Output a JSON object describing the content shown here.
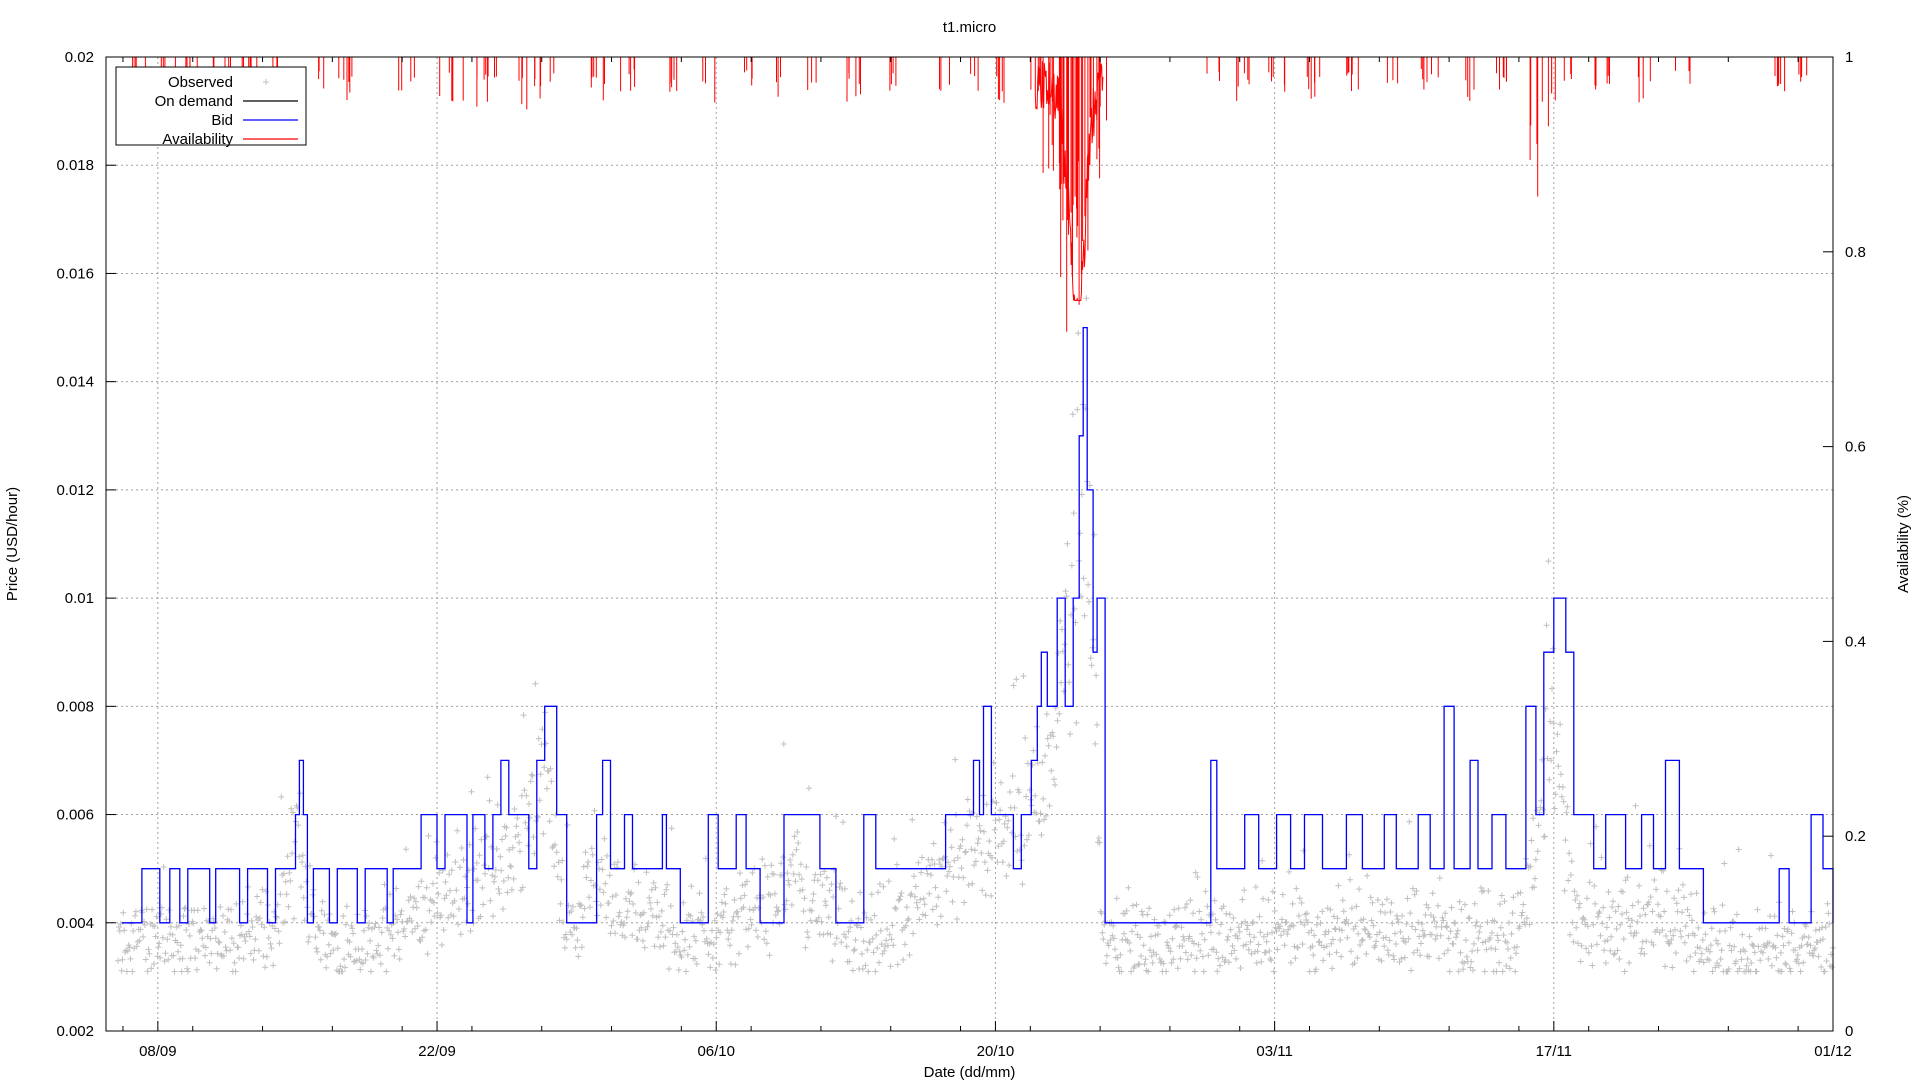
{
  "chart_data": {
    "type": "line",
    "title": "t1.micro",
    "xlabel": "Date (dd/mm)",
    "ylabel": "Price (USD/hour)",
    "y2label": "Availability (%)",
    "x_tick_labels": [
      "08/09",
      "22/09",
      "06/10",
      "20/10",
      "03/11",
      "17/11",
      "01/12"
    ],
    "x_tick_days": [
      0,
      14,
      28,
      42,
      56,
      70,
      84
    ],
    "xlim_days": [
      -2.6,
      84.0
    ],
    "ylim": [
      0.002,
      0.02
    ],
    "y_ticks": [
      0.002,
      0.004,
      0.006,
      0.008,
      0.01,
      0.012,
      0.014,
      0.016,
      0.018,
      0.02
    ],
    "y_tick_labels": [
      "0.002",
      "0.004",
      "0.006",
      "0.008",
      "0.01",
      "0.012",
      "0.014",
      "0.016",
      "0.018",
      "0.02"
    ],
    "y2lim": [
      0,
      1
    ],
    "y2_ticks": [
      0,
      0.2,
      0.4,
      0.6,
      0.8,
      1
    ],
    "y2_tick_labels": [
      "0",
      "0.2",
      "0.4",
      "0.6",
      "0.8",
      "1"
    ],
    "grid": true,
    "legend_position": "top-left",
    "legend": [
      "Observed",
      "On demand",
      "Bid",
      "Availability"
    ],
    "series_colors": {
      "Observed": "#c0c0c0",
      "On demand": "#000000",
      "Bid": "#0000ff",
      "Availability": "#ff0000"
    },
    "series": [
      {
        "name": "Bid",
        "type": "step",
        "points": [
          [
            -1.8,
            0.004
          ],
          [
            -0.8,
            0.005
          ],
          [
            0.1,
            0.004
          ],
          [
            0.6,
            0.005
          ],
          [
            1.1,
            0.004
          ],
          [
            1.5,
            0.005
          ],
          [
            2.6,
            0.004
          ],
          [
            2.9,
            0.005
          ],
          [
            4.1,
            0.004
          ],
          [
            4.5,
            0.005
          ],
          [
            5.5,
            0.004
          ],
          [
            5.9,
            0.005
          ],
          [
            6.9,
            0.006
          ],
          [
            7.1,
            0.007
          ],
          [
            7.3,
            0.006
          ],
          [
            7.5,
            0.004
          ],
          [
            7.8,
            0.005
          ],
          [
            8.6,
            0.004
          ],
          [
            9.0,
            0.005
          ],
          [
            10.0,
            0.004
          ],
          [
            10.4,
            0.005
          ],
          [
            11.5,
            0.004
          ],
          [
            11.8,
            0.005
          ],
          [
            13.2,
            0.006
          ],
          [
            14.0,
            0.005
          ],
          [
            14.4,
            0.006
          ],
          [
            15.5,
            0.004
          ],
          [
            15.8,
            0.006
          ],
          [
            16.4,
            0.005
          ],
          [
            16.8,
            0.006
          ],
          [
            17.2,
            0.007
          ],
          [
            17.6,
            0.006
          ],
          [
            18.6,
            0.005
          ],
          [
            19.0,
            0.007
          ],
          [
            19.4,
            0.008
          ],
          [
            20.0,
            0.006
          ],
          [
            20.5,
            0.004
          ],
          [
            22.0,
            0.006
          ],
          [
            22.3,
            0.007
          ],
          [
            22.7,
            0.005
          ],
          [
            23.4,
            0.006
          ],
          [
            23.8,
            0.005
          ],
          [
            25.3,
            0.006
          ],
          [
            25.5,
            0.005
          ],
          [
            26.2,
            0.004
          ],
          [
            27.6,
            0.006
          ],
          [
            28.1,
            0.005
          ],
          [
            29.0,
            0.006
          ],
          [
            29.5,
            0.005
          ],
          [
            30.2,
            0.004
          ],
          [
            31.4,
            0.006
          ],
          [
            33.2,
            0.005
          ],
          [
            34.0,
            0.004
          ],
          [
            35.4,
            0.006
          ],
          [
            36.0,
            0.005
          ],
          [
            39.5,
            0.006
          ],
          [
            40.6,
            0.006
          ],
          [
            40.9,
            0.007
          ],
          [
            41.2,
            0.006
          ],
          [
            41.4,
            0.008
          ],
          [
            41.8,
            0.006
          ],
          [
            42.9,
            0.005
          ],
          [
            43.3,
            0.006
          ],
          [
            43.8,
            0.007
          ],
          [
            44.1,
            0.008
          ],
          [
            44.3,
            0.009
          ],
          [
            44.6,
            0.008
          ],
          [
            45.1,
            0.01
          ],
          [
            45.5,
            0.008
          ],
          [
            45.9,
            0.01
          ],
          [
            46.2,
            0.013
          ],
          [
            46.4,
            0.015
          ],
          [
            46.6,
            0.012
          ],
          [
            46.9,
            0.009
          ],
          [
            47.1,
            0.01
          ],
          [
            47.5,
            0.004
          ],
          [
            52.8,
            0.007
          ],
          [
            53.1,
            0.005
          ],
          [
            54.5,
            0.006
          ],
          [
            55.2,
            0.005
          ],
          [
            56.1,
            0.006
          ],
          [
            56.8,
            0.005
          ],
          [
            57.5,
            0.006
          ],
          [
            58.4,
            0.005
          ],
          [
            59.6,
            0.006
          ],
          [
            60.4,
            0.005
          ],
          [
            61.5,
            0.006
          ],
          [
            62.1,
            0.005
          ],
          [
            63.2,
            0.006
          ],
          [
            63.8,
            0.005
          ],
          [
            64.5,
            0.008
          ],
          [
            65.0,
            0.005
          ],
          [
            65.8,
            0.007
          ],
          [
            66.2,
            0.005
          ],
          [
            66.9,
            0.006
          ],
          [
            67.6,
            0.005
          ],
          [
            68.6,
            0.008
          ],
          [
            69.1,
            0.006
          ],
          [
            69.5,
            0.009
          ],
          [
            70.0,
            0.01
          ],
          [
            70.6,
            0.009
          ],
          [
            71.0,
            0.006
          ],
          [
            72.0,
            0.005
          ],
          [
            72.6,
            0.006
          ],
          [
            73.6,
            0.005
          ],
          [
            74.4,
            0.006
          ],
          [
            75.0,
            0.005
          ],
          [
            75.6,
            0.007
          ],
          [
            76.3,
            0.005
          ],
          [
            77.5,
            0.004
          ],
          [
            81.3,
            0.005
          ],
          [
            81.8,
            0.004
          ],
          [
            82.9,
            0.006
          ],
          [
            83.5,
            0.005
          ],
          [
            84.0,
            0.004
          ]
        ]
      },
      {
        "name": "Observed",
        "type": "scatter",
        "baseline": [
          [
            -2.0,
            0.0035
          ],
          [
            0.0,
            0.0037
          ],
          [
            2.0,
            0.0036
          ],
          [
            4.0,
            0.0037
          ],
          [
            6.0,
            0.0038
          ],
          [
            7.0,
            0.0055
          ],
          [
            8.0,
            0.0037
          ],
          [
            10.0,
            0.0036
          ],
          [
            12.0,
            0.0038
          ],
          [
            14.0,
            0.0044
          ],
          [
            16.0,
            0.0047
          ],
          [
            18.0,
            0.0052
          ],
          [
            19.5,
            0.0066
          ],
          [
            20.5,
            0.0037
          ],
          [
            22.0,
            0.005
          ],
          [
            23.0,
            0.0043
          ],
          [
            25.0,
            0.004
          ],
          [
            26.0,
            0.0037
          ],
          [
            28.0,
            0.0038
          ],
          [
            30.0,
            0.0041
          ],
          [
            32.0,
            0.0048
          ],
          [
            34.0,
            0.0039
          ],
          [
            36.0,
            0.0037
          ],
          [
            38.0,
            0.0041
          ],
          [
            40.0,
            0.0052
          ],
          [
            42.0,
            0.0054
          ],
          [
            43.0,
            0.0056
          ],
          [
            44.0,
            0.0062
          ],
          [
            45.0,
            0.0075
          ],
          [
            46.0,
            0.0105
          ],
          [
            46.5,
            0.012
          ],
          [
            47.0,
            0.008
          ],
          [
            47.4,
            0.0036
          ],
          [
            50.0,
            0.0035
          ],
          [
            52.5,
            0.0037
          ],
          [
            54.0,
            0.0038
          ],
          [
            56.0,
            0.0037
          ],
          [
            58.0,
            0.0038
          ],
          [
            60.0,
            0.0037
          ],
          [
            62.0,
            0.0038
          ],
          [
            64.0,
            0.0038
          ],
          [
            66.0,
            0.0037
          ],
          [
            68.0,
            0.0038
          ],
          [
            69.0,
            0.005
          ],
          [
            70.0,
            0.0075
          ],
          [
            71.0,
            0.0042
          ],
          [
            72.0,
            0.0038
          ],
          [
            74.0,
            0.004
          ],
          [
            76.0,
            0.004
          ],
          [
            78.0,
            0.0034
          ],
          [
            80.0,
            0.0034
          ],
          [
            82.0,
            0.0035
          ],
          [
            84.0,
            0.0035
          ]
        ]
      },
      {
        "name": "Availability",
        "type": "line",
        "axis": "y2",
        "baseline": 1.0,
        "dips": [
          [
            -1.0,
            0.96
          ],
          [
            0.5,
            0.97
          ],
          [
            1.8,
            0.96
          ],
          [
            3.2,
            0.97
          ],
          [
            4.6,
            0.96
          ],
          [
            6.2,
            0.97
          ],
          [
            8.0,
            0.97
          ],
          [
            9.5,
            0.96
          ],
          [
            12.5,
            0.97
          ],
          [
            14.5,
            0.96
          ],
          [
            15.6,
            0.95
          ],
          [
            16.8,
            0.96
          ],
          [
            18.5,
            0.95
          ],
          [
            19.5,
            0.96
          ],
          [
            22.0,
            0.95
          ],
          [
            23.5,
            0.97
          ],
          [
            26.0,
            0.97
          ],
          [
            27.6,
            0.96
          ],
          [
            29.5,
            0.97
          ],
          [
            31.0,
            0.96
          ],
          [
            33.0,
            0.97
          ],
          [
            35.0,
            0.96
          ],
          [
            37.0,
            0.97
          ],
          [
            39.5,
            0.96
          ],
          [
            40.8,
            0.97
          ],
          [
            42.5,
            0.96
          ],
          [
            44.0,
            0.95
          ],
          [
            44.6,
            0.9
          ],
          [
            45.0,
            0.88
          ],
          [
            45.3,
            0.86
          ],
          [
            45.7,
            0.8
          ],
          [
            46.0,
            0.76
          ],
          [
            46.2,
            0.78
          ],
          [
            46.5,
            0.82
          ],
          [
            46.8,
            0.88
          ],
          [
            47.2,
            0.92
          ],
          [
            52.8,
            0.97
          ],
          [
            54.5,
            0.96
          ],
          [
            56.1,
            0.97
          ],
          [
            58.0,
            0.96
          ],
          [
            60.0,
            0.97
          ],
          [
            62.0,
            0.96
          ],
          [
            63.8,
            0.97
          ],
          [
            65.8,
            0.96
          ],
          [
            67.5,
            0.97
          ],
          [
            68.9,
            0.88
          ],
          [
            69.5,
            0.94
          ],
          [
            70.5,
            0.96
          ],
          [
            72.5,
            0.97
          ],
          [
            74.5,
            0.96
          ],
          [
            76.5,
            0.97
          ],
          [
            81.2,
            0.97
          ],
          [
            82.4,
            0.97
          ]
        ]
      }
    ]
  }
}
